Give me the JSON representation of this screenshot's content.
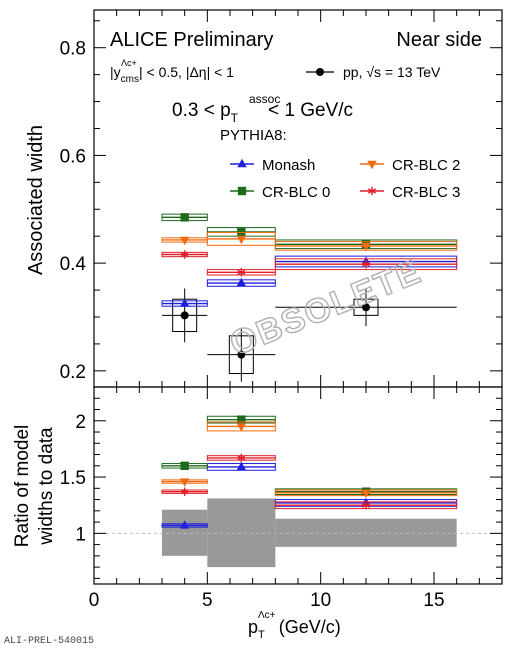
{
  "header": {
    "collab": "ALICE Preliminary",
    "region": "Near side",
    "cuts": "|y",
    "cuts_sub": "cms",
    "cuts_sup": "Λc+",
    "cuts_rest": "| < 0.5, |Δη| < 1",
    "data_label": "pp, √s = 13 TeV",
    "range_left": "0.3 < p",
    "range_sub": "T",
    "range_sup": "assoc",
    "range_right": "< 1 GeV/c",
    "generator": "PYTHIA8:",
    "watermark": "OBSOLETE",
    "ref_id": "ALI-PREL-540015"
  },
  "colors": {
    "data": "#000000",
    "monash": "#1f1fe0",
    "blc0": "#1e6b1e",
    "blc2": "#f26b10",
    "blc3": "#e0202a",
    "band": "#999999"
  },
  "chart_data": [
    {
      "type": "scatter",
      "ylabel": "Associated width",
      "xlim": [
        0,
        18
      ],
      "ylim": [
        0.17,
        0.87
      ],
      "yticks": [
        0.2,
        0.4,
        0.6,
        0.8
      ],
      "series": [
        {
          "name": "pp, √s = 13 TeV",
          "key": "data",
          "marker": "circle",
          "points": [
            {
              "x": 4,
              "xlo": 3,
              "xhi": 5,
              "y": 0.303,
              "stat": 0.05,
              "syst": 0.03
            },
            {
              "x": 6.5,
              "xlo": 5,
              "xhi": 8,
              "y": 0.23,
              "stat": 0.05,
              "syst": 0.035
            },
            {
              "x": 12,
              "xlo": 8,
              "xhi": 16,
              "y": 0.318,
              "stat": 0.035,
              "syst": 0.015
            }
          ]
        },
        {
          "name": "Monash",
          "key": "monash",
          "marker": "triangle",
          "points": [
            {
              "x": 4,
              "xlo": 3,
              "xhi": 5,
              "y": 0.325,
              "syst": 0.005
            },
            {
              "x": 6.5,
              "xlo": 5,
              "xhi": 8,
              "y": 0.363,
              "syst": 0.006
            },
            {
              "x": 12,
              "xlo": 8,
              "xhi": 16,
              "y": 0.403,
              "syst": 0.01
            }
          ]
        },
        {
          "name": "CR-BLC 0",
          "key": "blc0",
          "marker": "square",
          "points": [
            {
              "x": 4,
              "xlo": 3,
              "xhi": 5,
              "y": 0.485,
              "syst": 0.006
            },
            {
              "x": 6.5,
              "xlo": 5,
              "xhi": 8,
              "y": 0.458,
              "syst": 0.008
            },
            {
              "x": 12,
              "xlo": 8,
              "xhi": 16,
              "y": 0.435,
              "syst": 0.008
            }
          ]
        },
        {
          "name": "CR-BLC 2",
          "key": "blc2",
          "marker": "triangle-down",
          "points": [
            {
              "x": 4,
              "xlo": 3,
              "xhi": 5,
              "y": 0.443,
              "syst": 0.004
            },
            {
              "x": 6.5,
              "xlo": 5,
              "xhi": 8,
              "y": 0.445,
              "syst": 0.012
            },
            {
              "x": 12,
              "xlo": 8,
              "xhi": 16,
              "y": 0.432,
              "syst": 0.008
            }
          ]
        },
        {
          "name": "CR-BLC 3",
          "key": "blc3",
          "marker": "star",
          "points": [
            {
              "x": 4,
              "xlo": 3,
              "xhi": 5,
              "y": 0.416,
              "syst": 0.004
            },
            {
              "x": 6.5,
              "xlo": 5,
              "xhi": 8,
              "y": 0.383,
              "syst": 0.005
            },
            {
              "x": 12,
              "xlo": 8,
              "xhi": 16,
              "y": 0.398,
              "syst": 0.01
            }
          ]
        }
      ]
    },
    {
      "type": "scatter",
      "ylabel": "Ratio of model widths to data",
      "ylabel_lines": [
        "Ratio of model",
        "widths to data"
      ],
      "xlabel": "p",
      "xlabel_sub": "T",
      "xlabel_sup": "Λc+",
      "xlabel_unit": "(GeV/c)",
      "xlim": [
        0,
        18
      ],
      "xticks": [
        0,
        5,
        10,
        15
      ],
      "ylim": [
        0.55,
        2.3
      ],
      "yticks": [
        1,
        1.5,
        2
      ],
      "reference_line": 1,
      "data_uncertainty_band": [
        {
          "xlo": 3,
          "xhi": 5,
          "lo": 0.8,
          "hi": 1.21
        },
        {
          "xlo": 5,
          "xhi": 8,
          "lo": 0.7,
          "hi": 1.31
        },
        {
          "xlo": 8,
          "xhi": 16,
          "lo": 0.88,
          "hi": 1.13
        }
      ],
      "series": [
        {
          "name": "Monash",
          "key": "monash",
          "marker": "triangle",
          "points": [
            {
              "x": 4,
              "xlo": 3,
              "xhi": 5,
              "y": 1.07,
              "syst": 0.015
            },
            {
              "x": 6.5,
              "xlo": 5,
              "xhi": 8,
              "y": 1.59,
              "syst": 0.03
            },
            {
              "x": 12,
              "xlo": 8,
              "xhi": 16,
              "y": 1.27,
              "syst": 0.03
            }
          ]
        },
        {
          "name": "CR-BLC 0",
          "key": "blc0",
          "marker": "square",
          "points": [
            {
              "x": 4,
              "xlo": 3,
              "xhi": 5,
              "y": 1.6,
              "syst": 0.02
            },
            {
              "x": 6.5,
              "xlo": 5,
              "xhi": 8,
              "y": 2.01,
              "syst": 0.03
            },
            {
              "x": 12,
              "xlo": 8,
              "xhi": 16,
              "y": 1.37,
              "syst": 0.025
            }
          ]
        },
        {
          "name": "CR-BLC 2",
          "key": "blc2",
          "marker": "triangle-down",
          "points": [
            {
              "x": 4,
              "xlo": 3,
              "xhi": 5,
              "y": 1.46,
              "syst": 0.015
            },
            {
              "x": 6.5,
              "xlo": 5,
              "xhi": 8,
              "y": 1.95,
              "syst": 0.04
            },
            {
              "x": 12,
              "xlo": 8,
              "xhi": 16,
              "y": 1.36,
              "syst": 0.025
            }
          ]
        },
        {
          "name": "CR-BLC 3",
          "key": "blc3",
          "marker": "star",
          "points": [
            {
              "x": 4,
              "xlo": 3,
              "xhi": 5,
              "y": 1.37,
              "syst": 0.015
            },
            {
              "x": 6.5,
              "xlo": 5,
              "xhi": 8,
              "y": 1.67,
              "syst": 0.02
            },
            {
              "x": 12,
              "xlo": 8,
              "xhi": 16,
              "y": 1.25,
              "syst": 0.03
            }
          ]
        }
      ]
    }
  ]
}
